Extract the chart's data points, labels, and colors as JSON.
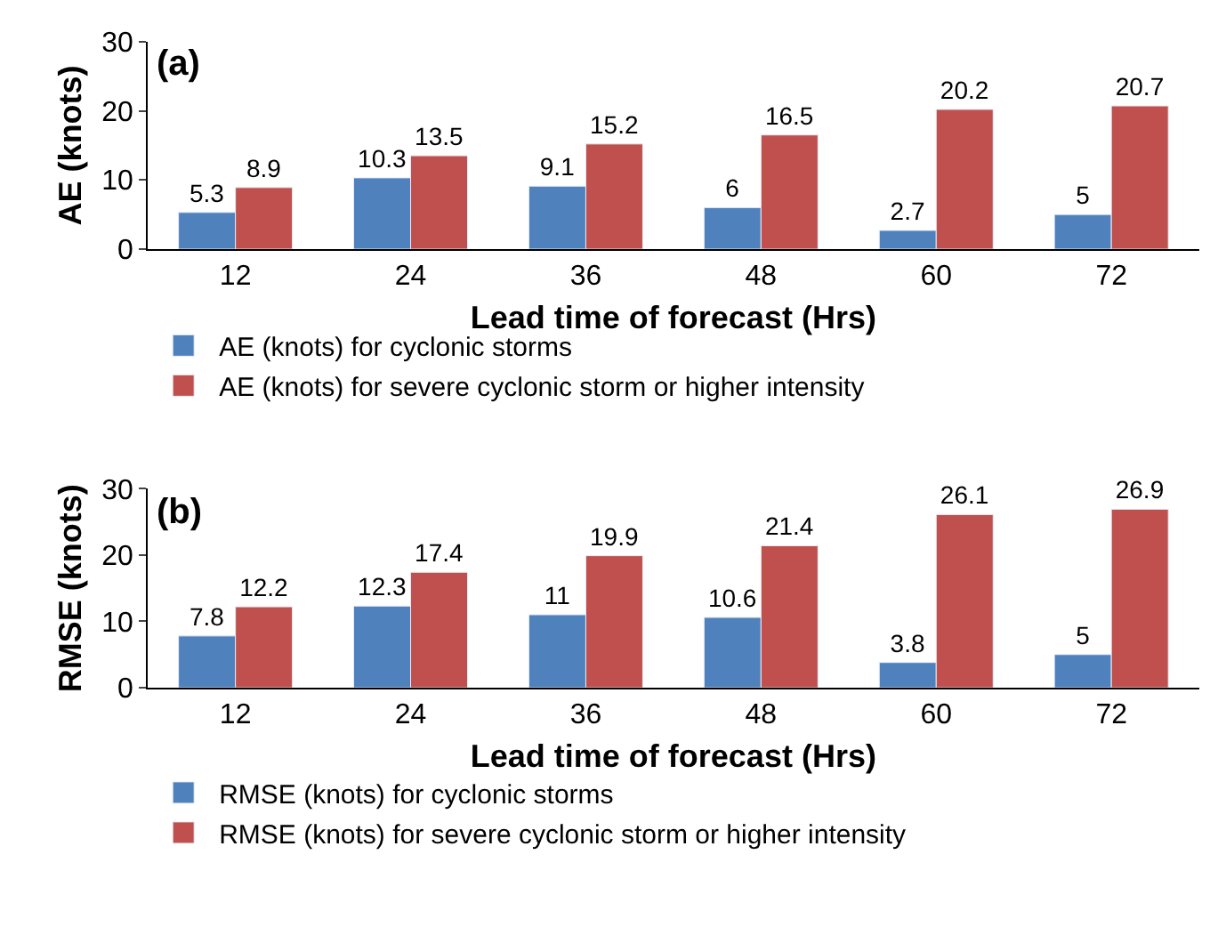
{
  "chart_data": [
    {
      "type": "bar",
      "title": "(a)",
      "xlabel": "Lead time of forecast (Hrs)",
      "ylabel": "AE (knots)",
      "categories": [
        "12",
        "24",
        "36",
        "48",
        "60",
        "72"
      ],
      "series": [
        {
          "name": "AE (knots) for cyclonic storms",
          "color": "#4f81bd",
          "values": [
            5.3,
            10.3,
            9.1,
            6,
            2.7,
            5
          ]
        },
        {
          "name": "AE (knots) for severe cyclonic storm or higher intensity",
          "color": "#c0504d",
          "values": [
            8.9,
            13.5,
            15.2,
            16.5,
            20.2,
            20.7
          ]
        }
      ],
      "ylim": [
        0,
        30
      ],
      "yticks": [
        0,
        10,
        20,
        30
      ],
      "data_labels": true,
      "legend": "bottom"
    },
    {
      "type": "bar",
      "title": "(b)",
      "xlabel": "Lead time of forecast (Hrs)",
      "ylabel": "RMSE (knots)",
      "categories": [
        "12",
        "24",
        "36",
        "48",
        "60",
        "72"
      ],
      "series": [
        {
          "name": "RMSE (knots) for cyclonic storms",
          "color": "#4f81bd",
          "values": [
            7.8,
            12.3,
            11,
            10.6,
            3.8,
            5
          ]
        },
        {
          "name": "RMSE (knots) for severe cyclonic storm or higher intensity",
          "color": "#c0504d",
          "values": [
            12.2,
            17.4,
            19.9,
            21.4,
            26.1,
            26.9
          ]
        }
      ],
      "ylim": [
        0,
        30
      ],
      "yticks": [
        0,
        10,
        20,
        30
      ],
      "data_labels": true,
      "legend": "bottom"
    }
  ]
}
